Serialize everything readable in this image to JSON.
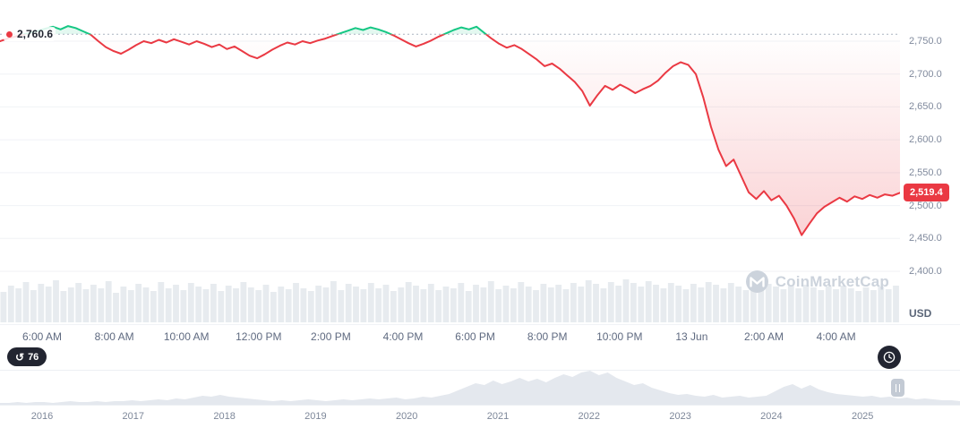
{
  "colors": {
    "red": "#ea3943",
    "green": "#16c784",
    "grid": "#f0f2f6",
    "volume": "#e7ebef",
    "navigator_fill": "#e4e8ee",
    "dotted_line": "#aab3c0"
  },
  "watermark": {
    "text": "CoinMarketCap"
  },
  "toolbar": {
    "countdown": "76"
  },
  "chart_data": {
    "type": "line",
    "currency": "USD",
    "open_price": 2760.6,
    "open_label": "2,760.6",
    "last_price": 2519.4,
    "last_label": "2,519.4",
    "y_ticks": [
      {
        "label": "2,750.0",
        "value": 2750
      },
      {
        "label": "2,700.0",
        "value": 2700
      },
      {
        "label": "2,650.0",
        "value": 2650
      },
      {
        "label": "2,600.0",
        "value": 2600
      },
      {
        "label": "2,550.0",
        "value": 2550
      },
      {
        "label": "2,500.0",
        "value": 2500
      },
      {
        "label": "2,450.0",
        "value": 2450
      },
      {
        "label": "2,400.0",
        "value": 2400
      }
    ],
    "time_ticks": [
      "6:00 AM",
      "8:00 AM",
      "10:00 AM",
      "12:00 PM",
      "2:00 PM",
      "4:00 PM",
      "6:00 PM",
      "8:00 PM",
      "10:00 PM",
      "13 Jun",
      "2:00 AM",
      "4:00 AM"
    ],
    "prices": [
      2750,
      2754,
      2757,
      2760,
      2763,
      2766,
      2769,
      2772,
      2768,
      2773,
      2770,
      2765,
      2760,
      2750,
      2741,
      2735,
      2731,
      2737,
      2744,
      2750,
      2747,
      2752,
      2748,
      2753,
      2749,
      2745,
      2750,
      2746,
      2741,
      2745,
      2738,
      2742,
      2735,
      2728,
      2724,
      2730,
      2737,
      2743,
      2748,
      2745,
      2750,
      2747,
      2751,
      2754,
      2758,
      2762,
      2766,
      2770,
      2767,
      2771,
      2768,
      2764,
      2759,
      2753,
      2747,
      2742,
      2746,
      2751,
      2757,
      2762,
      2767,
      2771,
      2768,
      2772,
      2763,
      2754,
      2746,
      2740,
      2744,
      2738,
      2730,
      2722,
      2712,
      2716,
      2708,
      2698,
      2688,
      2674,
      2652,
      2668,
      2682,
      2676,
      2684,
      2678,
      2671,
      2677,
      2682,
      2690,
      2702,
      2712,
      2718,
      2714,
      2700,
      2664,
      2620,
      2585,
      2560,
      2570,
      2545,
      2520,
      2510,
      2522,
      2508,
      2515,
      2500,
      2480,
      2455,
      2472,
      2488,
      2498,
      2505,
      2512,
      2506,
      2514,
      2510,
      2516,
      2512,
      2517,
      2515,
      2519.4
    ],
    "volume_bars": [
      34,
      41,
      38,
      45,
      36,
      43,
      40,
      47,
      35,
      39,
      44,
      37,
      42,
      38,
      46,
      33,
      40,
      36,
      43,
      39,
      35,
      45,
      38,
      42,
      36,
      44,
      40,
      37,
      43,
      35,
      41,
      38,
      45,
      39,
      36,
      42,
      34,
      40,
      37,
      44,
      38,
      35,
      41,
      39,
      46,
      36,
      43,
      40,
      37,
      44,
      38,
      42,
      35,
      39,
      45,
      41,
      37,
      43,
      36,
      40,
      38,
      44,
      35,
      42,
      39,
      46,
      37,
      41,
      38,
      45,
      40,
      36,
      43,
      39,
      42,
      37,
      44,
      40,
      47,
      43,
      38,
      45,
      41,
      48,
      44,
      40,
      46,
      42,
      38,
      44,
      41,
      37,
      43,
      39,
      45,
      42,
      38,
      44,
      40,
      36,
      42,
      39,
      43,
      40,
      37,
      41,
      38,
      42,
      39,
      36,
      40,
      37,
      41,
      38,
      35,
      39,
      36,
      40,
      37,
      41
    ],
    "navigator": {
      "years": [
        "2016",
        "2017",
        "2018",
        "2019",
        "2020",
        "2021",
        "2022",
        "2023",
        "2024",
        "2025"
      ],
      "values": [
        2,
        2,
        3,
        2,
        3,
        3,
        2,
        3,
        4,
        3,
        3,
        4,
        3,
        4,
        4,
        5,
        4,
        5,
        6,
        5,
        7,
        6,
        8,
        10,
        9,
        11,
        9,
        8,
        7,
        6,
        5,
        4,
        5,
        4,
        5,
        6,
        5,
        4,
        5,
        6,
        5,
        6,
        7,
        6,
        7,
        8,
        6,
        7,
        9,
        8,
        10,
        12,
        16,
        20,
        24,
        22,
        27,
        23,
        26,
        30,
        26,
        29,
        25,
        30,
        34,
        31,
        36,
        38,
        33,
        36,
        30,
        26,
        22,
        24,
        19,
        16,
        13,
        11,
        12,
        10,
        9,
        11,
        8,
        9,
        10,
        8,
        9,
        10,
        15,
        20,
        23,
        18,
        22,
        17,
        14,
        12,
        11,
        10,
        9,
        10,
        8,
        9,
        7,
        8,
        6,
        7,
        6,
        5,
        5,
        4
      ]
    }
  }
}
